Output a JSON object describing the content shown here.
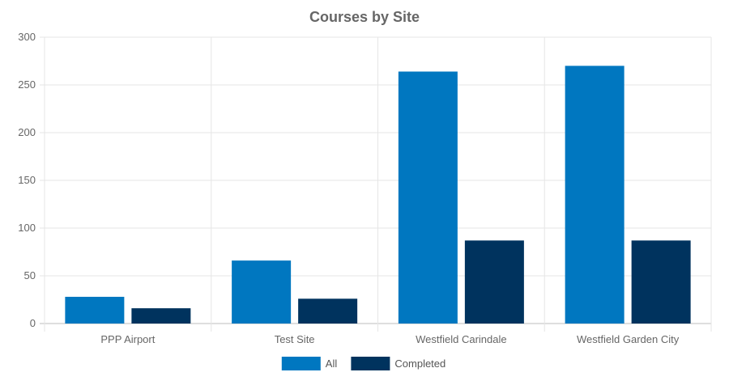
{
  "chart_data": {
    "type": "bar",
    "title": "Courses by Site",
    "categories": [
      "PPP Airport",
      "Test Site",
      "Westfield Carindale",
      "Westfield Garden City"
    ],
    "series": [
      {
        "name": "All",
        "values": [
          28,
          66,
          264,
          270
        ],
        "color": "#0077c0"
      },
      {
        "name": "Completed",
        "values": [
          16,
          26,
          87,
          87
        ],
        "color": "#00335e"
      }
    ],
    "yticks": [
      0,
      50,
      100,
      150,
      200,
      250,
      300
    ],
    "ylim": [
      0,
      300
    ],
    "grid": true,
    "legend_position": "bottom"
  }
}
